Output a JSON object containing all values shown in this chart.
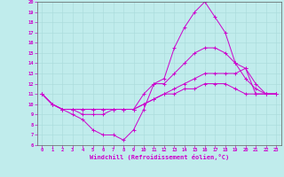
{
  "xlabel": "Windchill (Refroidissement éolien,°C)",
  "bg_color": "#c0ecec",
  "line_color": "#cc00cc",
  "xlim": [
    -0.5,
    23.5
  ],
  "ylim": [
    6,
    20
  ],
  "xticks": [
    0,
    1,
    2,
    3,
    4,
    5,
    6,
    7,
    8,
    9,
    10,
    11,
    12,
    13,
    14,
    15,
    16,
    17,
    18,
    19,
    20,
    21,
    22,
    23
  ],
  "yticks": [
    6,
    7,
    8,
    9,
    10,
    11,
    12,
    13,
    14,
    15,
    16,
    17,
    18,
    19,
    20
  ],
  "series": [
    [
      11,
      10,
      9.5,
      9,
      8.5,
      7.5,
      7,
      7,
      6.5,
      7.5,
      9.5,
      12,
      12.5,
      15.5,
      17.5,
      19,
      20,
      18.5,
      17,
      14,
      12.5,
      11.5,
      11,
      11
    ],
    [
      11,
      10,
      9.5,
      9.5,
      9,
      9,
      9,
      9.5,
      9.5,
      9.5,
      11,
      12,
      12,
      13,
      14,
      15,
      15.5,
      15.5,
      15,
      14,
      13.5,
      12,
      11,
      11
    ],
    [
      11,
      10,
      9.5,
      9.5,
      9.5,
      9.5,
      9.5,
      9.5,
      9.5,
      9.5,
      10,
      10.5,
      11,
      11.5,
      12,
      12.5,
      13,
      13,
      13,
      13,
      13.5,
      11,
      11,
      11
    ],
    [
      11,
      10,
      9.5,
      9.5,
      9.5,
      9.5,
      9.5,
      9.5,
      9.5,
      9.5,
      10,
      10.5,
      11,
      11,
      11.5,
      11.5,
      12,
      12,
      12,
      11.5,
      11,
      11,
      11,
      11
    ]
  ]
}
